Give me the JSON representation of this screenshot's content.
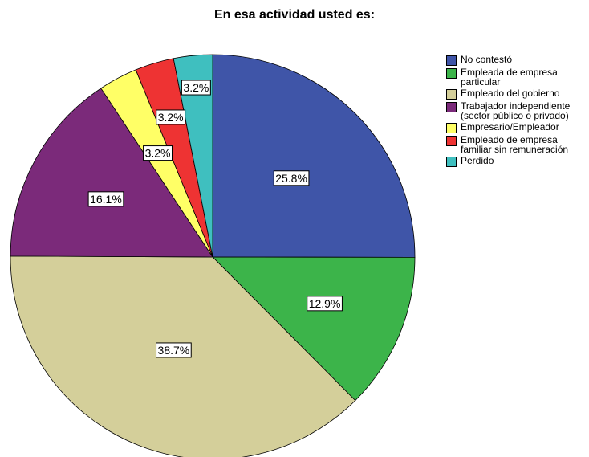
{
  "chart_data": {
    "type": "pie",
    "title": "En esa actividad usted es:",
    "categories": [
      "No contestó",
      "Empleada de empresa particular",
      "Empleado del gobierno",
      "Trabajador independiente (sector público o privado)",
      "Empresario/Empleador",
      "Empleado de empresa familiar sin remuneración",
      "Perdido"
    ],
    "values": [
      25.8,
      12.9,
      38.7,
      16.1,
      3.2,
      3.2,
      3.2
    ],
    "value_labels": [
      "25.8%",
      "12.9%",
      "38.7%",
      "16.1%",
      "3.2%",
      "3.2%",
      "3.2%"
    ],
    "colors": [
      "#3f55a8",
      "#3cb44a",
      "#d4cf9a",
      "#7b2a7a",
      "#ffff66",
      "#ee3333",
      "#3fbfbf"
    ],
    "legend": "right"
  }
}
